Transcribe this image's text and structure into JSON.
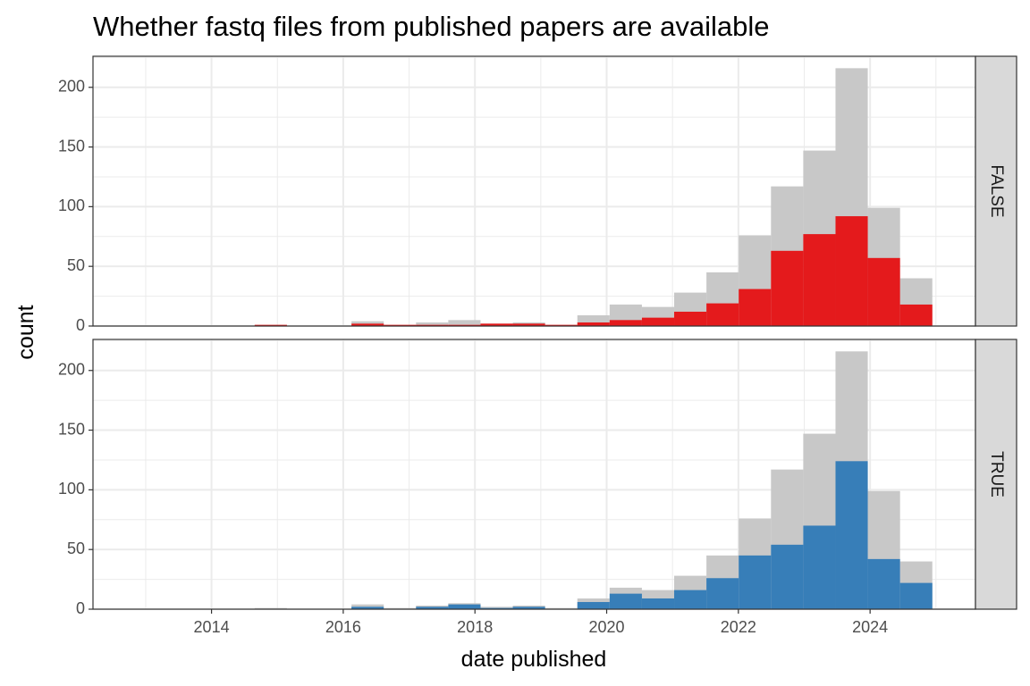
{
  "colors": {
    "total": "#c8c8c8",
    "false_series": "#e41a1c",
    "true_series": "#377eb8",
    "strip_fill": "#d9d9d9",
    "grid": "#ebebeb",
    "panel_border": "#333333"
  },
  "chart_data": {
    "type": "bar",
    "title": "Whether fastq files from published papers are available",
    "xlabel": "date published",
    "ylabel": "count",
    "xlim": [
      2012.2,
      2025.6
    ],
    "ylim": [
      0,
      226
    ],
    "x_ticks": [
      2014,
      2016,
      2018,
      2020,
      2022,
      2024
    ],
    "y_ticks": [
      0,
      50,
      100,
      150,
      200
    ],
    "grid": true,
    "legend": "none",
    "bin_width": 0.49,
    "bin_centers": [
      12.45,
      12.94,
      13.43,
      13.92,
      14.41,
      14.9,
      15.39,
      15.88,
      16.37,
      16.86,
      17.35,
      17.84,
      18.33,
      18.82,
      19.31,
      19.8,
      20.29,
      20.78,
      21.27,
      21.76,
      22.25,
      22.74,
      23.23,
      23.72,
      24.21,
      24.7
    ],
    "bin_year_offset": 2000,
    "total": [
      0,
      0,
      0,
      0,
      0,
      1,
      0,
      0,
      4,
      1,
      3,
      5,
      2,
      3,
      1,
      9,
      18,
      16,
      28,
      45,
      76,
      117,
      147,
      216,
      99,
      40
    ],
    "panels": [
      {
        "strip": "FALSE",
        "values": [
          0,
          0,
          0,
          0,
          0,
          1,
          0,
          0,
          2,
          1,
          1,
          1,
          2,
          2,
          1,
          3,
          5,
          7,
          12,
          19,
          31,
          63,
          77,
          92,
          57,
          18
        ]
      },
      {
        "strip": "TRUE",
        "values": [
          0,
          0,
          0,
          0,
          0,
          0,
          0,
          0,
          2,
          0,
          2,
          4,
          1,
          2,
          0,
          6,
          13,
          9,
          16,
          26,
          45,
          54,
          70,
          124,
          42,
          22
        ]
      }
    ]
  }
}
